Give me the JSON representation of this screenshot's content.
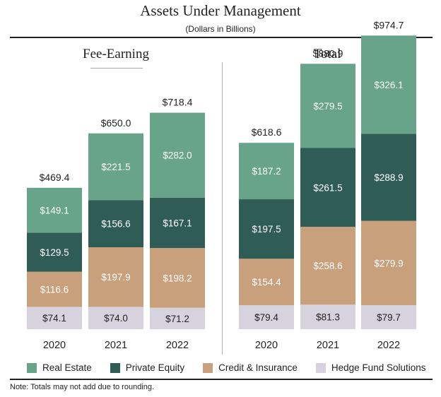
{
  "header": {
    "title": "Assets Under Management",
    "subtitle": "(Dollars in Billions)"
  },
  "note": "Note: Totals may not add due to rounding.",
  "colors": {
    "Real Estate": "#67a489",
    "Private Equity": "#2f5d55",
    "Credit & Insurance": "#c9a07c",
    "Hedge Fund Solutions": "#d6d3df"
  },
  "chart_data": [
    {
      "type": "bar",
      "stacked": true,
      "title": "Fee-Earning",
      "categories": [
        "2020",
        "2021",
        "2022"
      ],
      "series": [
        {
          "name": "Hedge Fund Solutions",
          "values": [
            74.1,
            74.0,
            71.2
          ],
          "labels": [
            "$74.1",
            "$74.0",
            "$71.2"
          ]
        },
        {
          "name": "Credit & Insurance",
          "values": [
            116.6,
            197.9,
            198.2
          ],
          "labels": [
            "$116.6",
            "$197.9",
            "$198.2"
          ]
        },
        {
          "name": "Private Equity",
          "values": [
            129.5,
            156.6,
            167.1
          ],
          "labels": [
            "$129.5",
            "$156.6",
            "$167.1"
          ]
        },
        {
          "name": "Real Estate",
          "values": [
            149.1,
            221.5,
            282.0
          ],
          "labels": [
            "$149.1",
            "$221.5",
            "$282.0"
          ]
        }
      ],
      "totals": [
        469.4,
        650.0,
        718.4
      ],
      "total_labels": [
        "$469.4",
        "$650.0",
        "$718.4"
      ]
    },
    {
      "type": "bar",
      "stacked": true,
      "title": "Total",
      "categories": [
        "2020",
        "2021",
        "2022"
      ],
      "series": [
        {
          "name": "Hedge Fund Solutions",
          "values": [
            79.4,
            81.3,
            79.7
          ],
          "labels": [
            "$79.4",
            "$81.3",
            "$79.7"
          ]
        },
        {
          "name": "Credit & Insurance",
          "values": [
            154.4,
            258.6,
            279.9
          ],
          "labels": [
            "$154.4",
            "$258.6",
            "$279.9"
          ]
        },
        {
          "name": "Private Equity",
          "values": [
            197.5,
            261.5,
            288.9
          ],
          "labels": [
            "$197.5",
            "$261.5",
            "$288.9"
          ]
        },
        {
          "name": "Real Estate",
          "values": [
            187.2,
            279.5,
            326.1
          ],
          "labels": [
            "$187.2",
            "$279.5",
            "$326.1"
          ]
        }
      ],
      "totals": [
        618.6,
        880.9,
        974.7
      ],
      "total_labels": [
        "$618.6",
        "$880.9",
        "$974.7"
      ]
    }
  ],
  "legend": [
    "Real Estate",
    "Private Equity",
    "Credit & Insurance",
    "Hedge Fund Solutions"
  ]
}
